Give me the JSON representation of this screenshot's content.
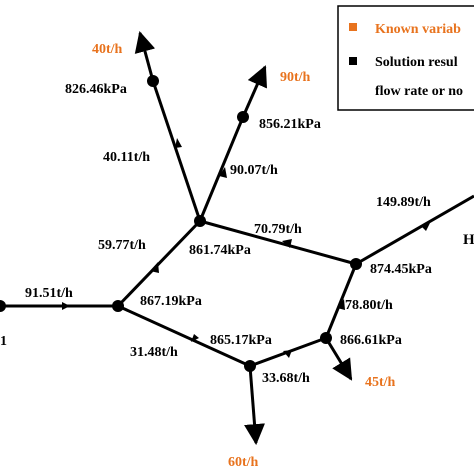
{
  "colors": {
    "known": "#e8731e",
    "result": "#000000",
    "line": "#000000",
    "background": "#ffffff"
  },
  "legend": {
    "known_label": "Known variab",
    "result_label": "Solution resul",
    "result_label_line2": "flow rate or no"
  },
  "edge_labels": {
    "e_40_11": "40.11t/h",
    "e_90_07": "90.07t/h",
    "e_59_77": "59.77t/h",
    "e_70_79": "70.79t/h",
    "e_149_89": "149.89t/h",
    "e_91_51": "91.51t/h",
    "e_78_80": "78.80t/h",
    "e_31_48": "31.48t/h",
    "e_33_68": "33.68t/h"
  },
  "pressure_labels": {
    "p_826_46": "826.46kPa",
    "p_856_21": "856.21kPa",
    "p_861_74": "861.74kPa",
    "p_874_45": "874.45kPa",
    "p_867_19": "867.19kPa",
    "p_865_17": "865.17kPa",
    "p_866_61": "866.61kPa"
  },
  "known_labels": {
    "k_40": "40t/h",
    "k_90": "90t/h",
    "k_45": "45t/h",
    "k_60": "60t/h"
  },
  "edge_text": {
    "right_edge": "H",
    "left_edge": "1"
  }
}
